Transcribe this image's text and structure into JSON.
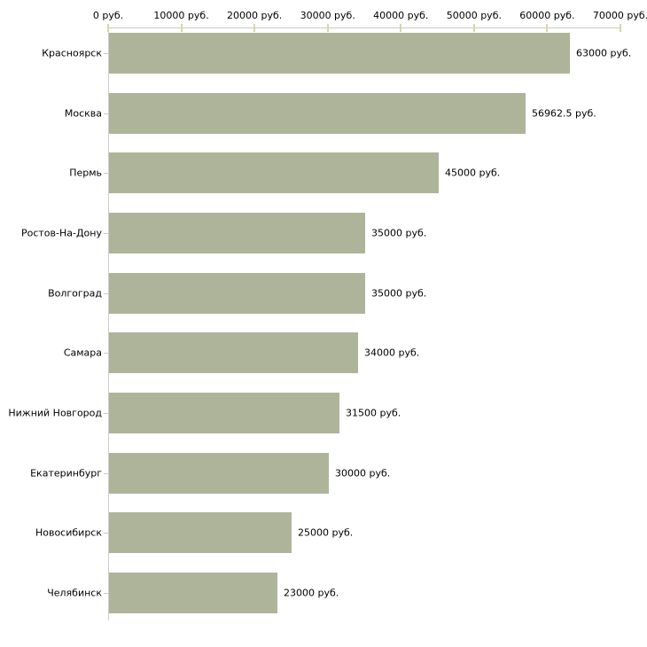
{
  "chart_data": {
    "type": "bar",
    "orientation": "horizontal",
    "title": "",
    "legend": "none",
    "grid": false,
    "categories": [
      "Красноярск",
      "Москва",
      "Пермь",
      "Ростов-На-Дону",
      "Волгоград",
      "Самара",
      "Нижний Новгород",
      "Екатеринбург",
      "Новосибирск",
      "Челябинск"
    ],
    "values": [
      63000,
      56962.5,
      45000,
      35000,
      35000,
      34000,
      31500,
      30000,
      25000,
      23000
    ],
    "value_labels": [
      "63000 руб.",
      "56962.5 руб.",
      "45000 руб.",
      "35000 руб.",
      "35000 руб.",
      "34000 руб.",
      "31500 руб.",
      "30000 руб.",
      "25000 руб.",
      "23000 руб."
    ],
    "x_axis": {
      "position": "top",
      "min": 0,
      "max": 70000,
      "tick_step": 10000,
      "tick_labels": [
        "0 руб.",
        "10000 руб.",
        "20000 руб.",
        "30000 руб.",
        "40000 руб.",
        "50000 руб.",
        "60000 руб.",
        "70000 руб."
      ]
    },
    "colors": {
      "bar": "#aeb499",
      "axis_line": "#c9c9c9",
      "y_axis_line": "#cfcfc6",
      "tick_mark": "#d8d5a8",
      "category_tick": "#c9c9c9",
      "text": "#000000",
      "background": "#ffffff"
    }
  }
}
